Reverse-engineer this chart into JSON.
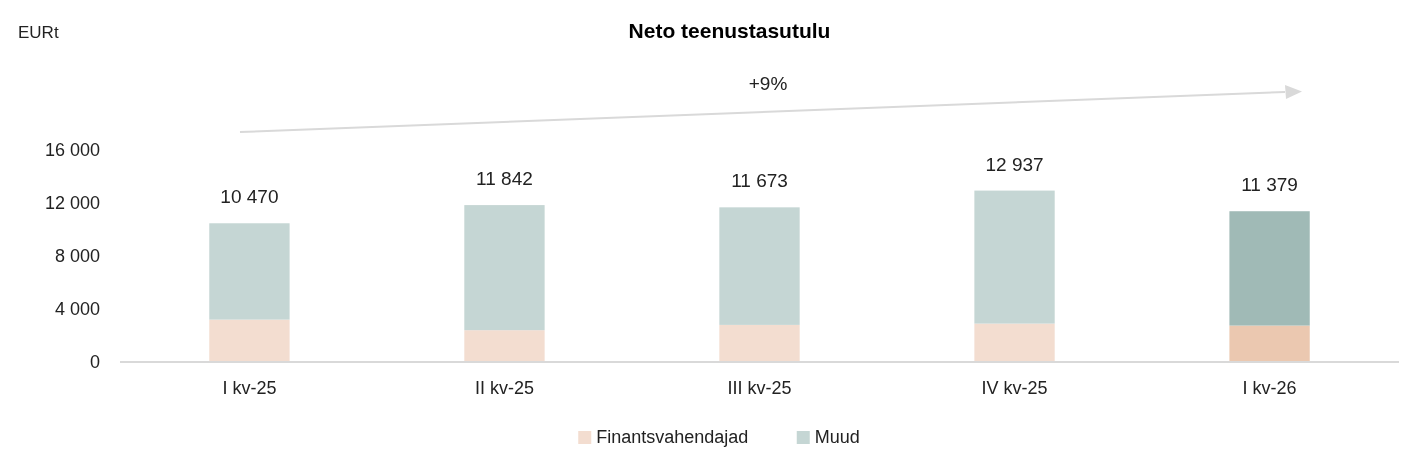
{
  "chart_data": {
    "type": "bar",
    "title": "Neto teenustasutulu",
    "stacked": true,
    "categories": [
      "I kv-25",
      "II kv-25",
      "III kv-25",
      "IV kv-25",
      "I kv-26"
    ],
    "series": [
      {
        "name": "Finantsvahendajad",
        "color": "#f3ddd0",
        "colors": [
          "#f3ddd0",
          "#f3ddd0",
          "#f3ddd0",
          "#f3ddd0",
          "#ebc8b0"
        ],
        "values": [
          3200,
          2400,
          2800,
          2900,
          2750
        ]
      },
      {
        "name": "Muud",
        "color": "#c5d6d4",
        "colors": [
          "#c5d6d4",
          "#c5d6d4",
          "#c5d6d4",
          "#c5d6d4",
          "#a0bab6"
        ],
        "values": [
          7270,
          9442,
          8873,
          10037,
          8629
        ]
      }
    ],
    "totals": [
      "10 470",
      "11 842",
      "11 673",
      "12 937",
      "11 379"
    ],
    "ylim": [
      0,
      16000
    ],
    "yticks": [
      {
        "value": 0,
        "label": "0"
      },
      {
        "value": 4000,
        "label": "4 000"
      },
      {
        "value": 8000,
        "label": "8 000"
      },
      {
        "value": 12000,
        "label": "12 000"
      },
      {
        "value": 16000,
        "label": "16 000"
      }
    ],
    "annotations": [
      "EURt",
      "+9%"
    ],
    "grid": false,
    "legend": "bottom"
  }
}
